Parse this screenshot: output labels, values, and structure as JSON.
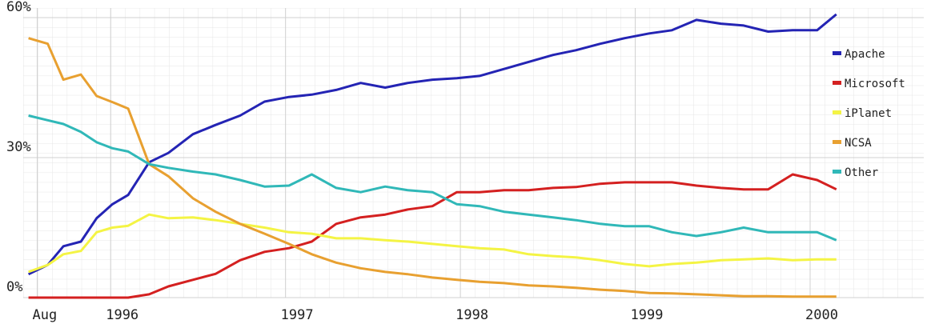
{
  "chart_data": {
    "type": "line",
    "x": [
      1995.53,
      1995.64,
      1995.73,
      1995.83,
      1995.92,
      1996.01,
      1996.1,
      1996.22,
      1996.33,
      1996.47,
      1996.6,
      1996.74,
      1996.88,
      1997.02,
      1997.15,
      1997.29,
      1997.43,
      1997.57,
      1997.7,
      1997.84,
      1997.98,
      1998.11,
      1998.25,
      1998.39,
      1998.53,
      1998.66,
      1998.8,
      1998.94,
      1999.08,
      1999.21,
      1999.35,
      1999.49,
      1999.62,
      1999.76,
      1999.9,
      2000.04,
      2000.15
    ],
    "series": [
      {
        "name": "Apache",
        "color": "#2424b4",
        "values": [
          5,
          7,
          11,
          12,
          17,
          20,
          22,
          29,
          31,
          35,
          37,
          39,
          42,
          43,
          43.5,
          44.5,
          46,
          45,
          46,
          46.7,
          47,
          47.5,
          49,
          50.5,
          52,
          53,
          54.4,
          55.6,
          56.6,
          57.3,
          59.5,
          58.7,
          58.3,
          57,
          57.3,
          57.3,
          60.7
        ]
      },
      {
        "name": "Microsoft",
        "color": "#d42020",
        "values": [
          0,
          0,
          0,
          0,
          0,
          0,
          0,
          0.7,
          2.4,
          3.8,
          5.1,
          8,
          9.8,
          10.6,
          12,
          15.8,
          17.2,
          17.8,
          18.9,
          19.6,
          22.6,
          22.6,
          23,
          23,
          23.5,
          23.7,
          24.4,
          24.7,
          24.7,
          24.7,
          24,
          23.5,
          23.2,
          23.2,
          26.4,
          25.2,
          23.2
        ]
      },
      {
        "name": "iPlanet",
        "color": "#f4f444",
        "values": [
          5.5,
          7,
          9.3,
          10,
          14,
          15,
          15.4,
          17.8,
          17,
          17.2,
          16.6,
          15.8,
          15,
          14,
          13.7,
          12.7,
          12.7,
          12.3,
          12,
          11.5,
          11,
          10.6,
          10.3,
          9.3,
          8.9,
          8.6,
          8,
          7.2,
          6.7,
          7.2,
          7.5,
          8,
          8.2,
          8.4,
          8,
          8.2,
          8.2
        ]
      },
      {
        "name": "NCSA",
        "color": "#e8a030",
        "values": [
          55.6,
          54.4,
          46.7,
          47.8,
          43.2,
          41.9,
          40.5,
          28.6,
          26,
          21.3,
          18.4,
          15.8,
          13.7,
          11.5,
          9.3,
          7.5,
          6.3,
          5.5,
          5,
          4.3,
          3.8,
          3.4,
          3.1,
          2.6,
          2.4,
          2.1,
          1.7,
          1.4,
          1.0,
          0.9,
          0.7,
          0.5,
          0.3,
          0.3,
          0.2,
          0.2,
          0.2
        ]
      },
      {
        "name": "Other",
        "color": "#30b8b8",
        "values": [
          39,
          38,
          37.2,
          35.5,
          33.3,
          32,
          31.3,
          28.6,
          27.8,
          27,
          26.4,
          25.2,
          23.8,
          24,
          26.4,
          23.5,
          22.6,
          23.8,
          23,
          22.6,
          20,
          19.6,
          18.4,
          17.8,
          17.2,
          16.6,
          15.8,
          15.3,
          15.3,
          14,
          13.2,
          14,
          15,
          14,
          14,
          14,
          12.3
        ]
      }
    ],
    "xlim": [
      1995.5,
      2000.65
    ],
    "xticks": [
      {
        "value": 1995.58,
        "label": "Aug"
      },
      1996,
      1997,
      1998,
      1999,
      2000
    ],
    "ylim": [
      0,
      60
    ],
    "yticks": [
      {
        "value": 0,
        "label": "0%"
      },
      {
        "value": 30,
        "label": "30%"
      },
      {
        "value": 60,
        "label": "60%"
      }
    ],
    "grid": true
  }
}
